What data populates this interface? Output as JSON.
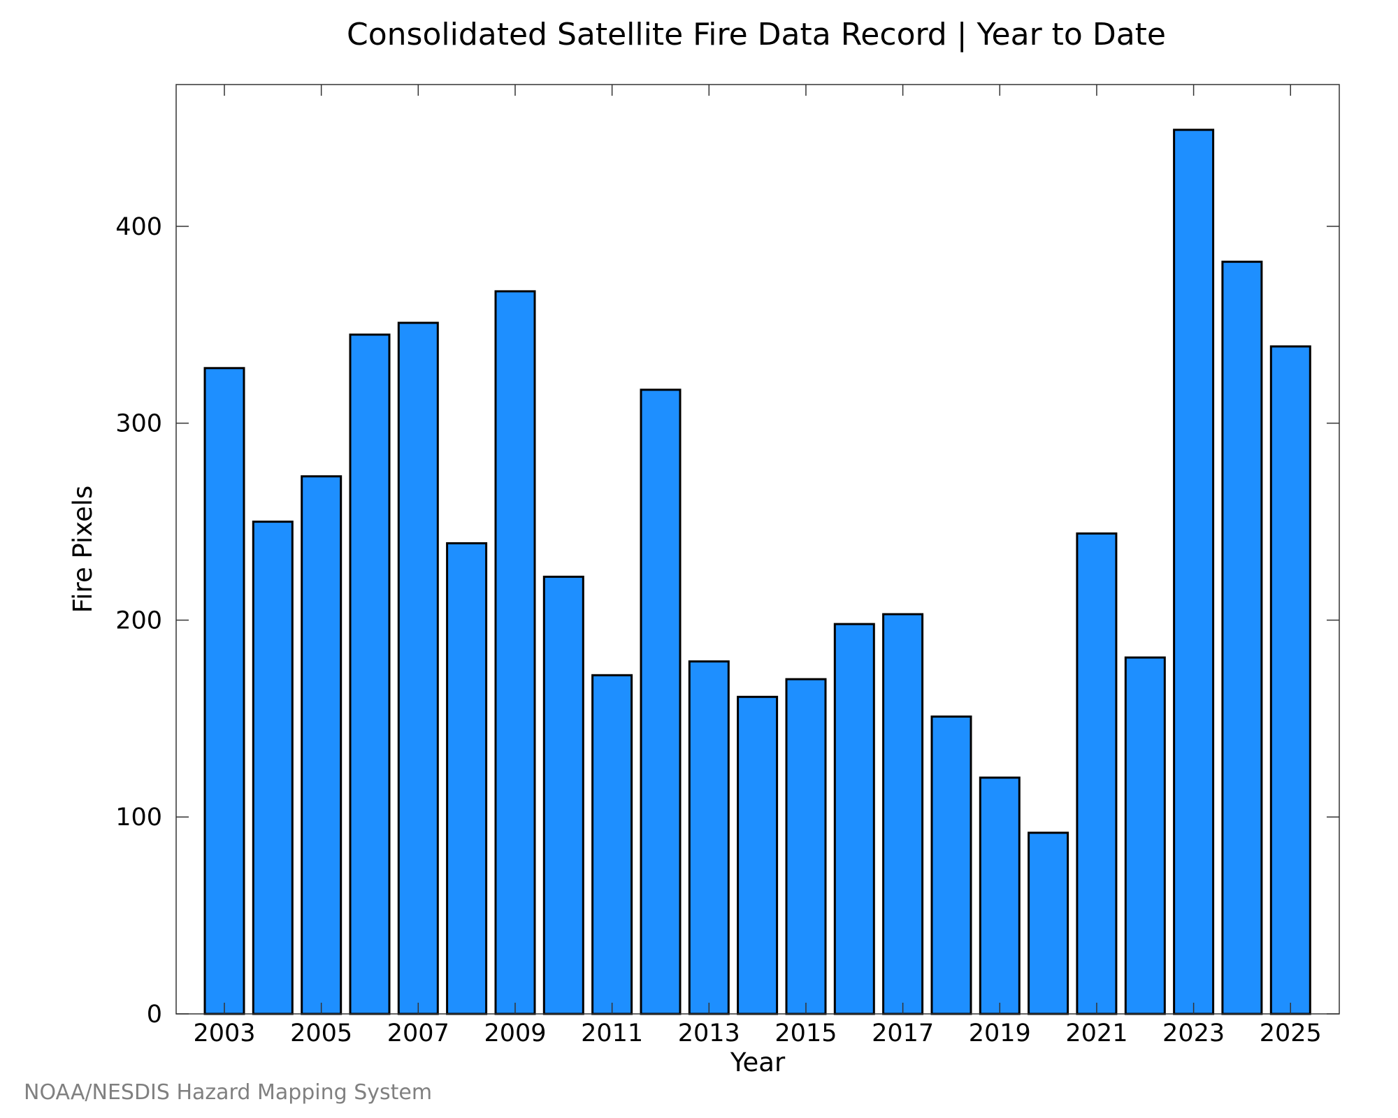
{
  "chart_data": {
    "type": "bar",
    "title": "Consolidated Satellite Fire Data Record | Year to Date",
    "xlabel": "Year",
    "ylabel": "Fire Pixels",
    "categories": [
      "2003",
      "2004",
      "2005",
      "2006",
      "2007",
      "2008",
      "2009",
      "2010",
      "2011",
      "2012",
      "2013",
      "2014",
      "2015",
      "2016",
      "2017",
      "2018",
      "2019",
      "2020",
      "2021",
      "2022",
      "2023",
      "2024",
      "2025"
    ],
    "values": [
      328,
      250,
      273,
      345,
      351,
      239,
      367,
      222,
      172,
      317,
      179,
      161,
      170,
      198,
      203,
      151,
      120,
      92,
      244,
      181,
      449,
      382,
      339
    ],
    "x_tick_labels": [
      "2003",
      "2005",
      "2007",
      "2009",
      "2011",
      "2013",
      "2015",
      "2017",
      "2019",
      "2021",
      "2023",
      "2025"
    ],
    "y_ticks": [
      0,
      100,
      200,
      300,
      400
    ],
    "ylim": [
      0,
      472
    ],
    "grid": false,
    "bar_color": "#1e8fff"
  },
  "credit": "NOAA/NESDIS Hazard Mapping System"
}
